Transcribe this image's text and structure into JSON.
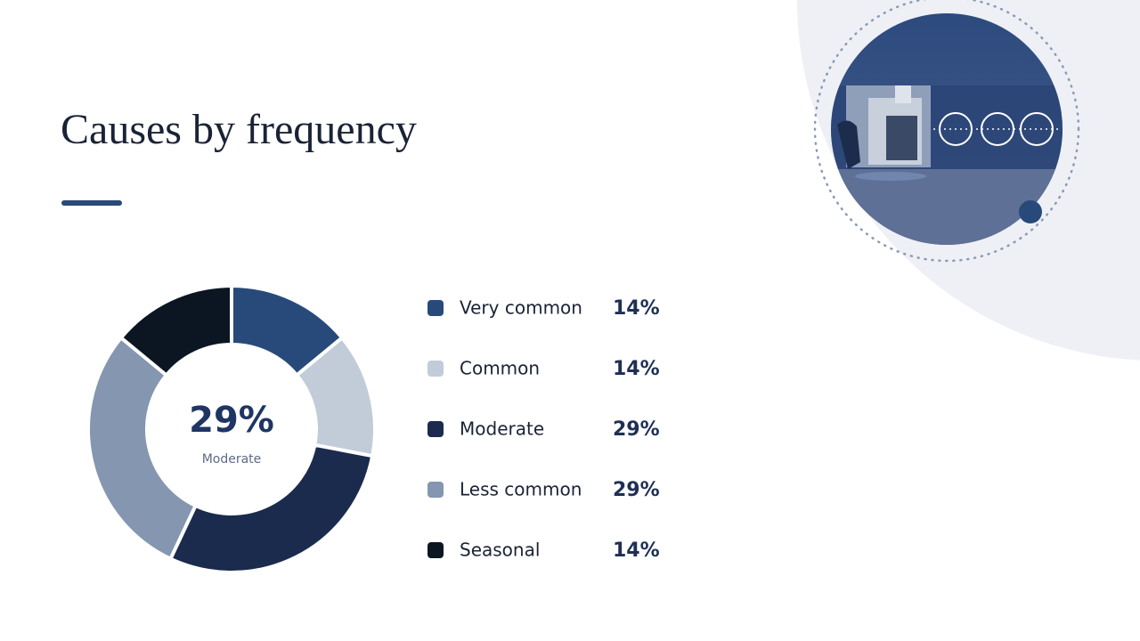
{
  "chart_data": {
    "type": "donut",
    "title": "Causes by frequency",
    "categories": [
      "Very common",
      "Common",
      "Moderate",
      "Less common",
      "Seasonal"
    ],
    "values": [
      14,
      14,
      29,
      29,
      14
    ],
    "value_labels": [
      "14%",
      "14%",
      "29%",
      "29%",
      "14%"
    ],
    "colors": [
      "#284a7a",
      "#c2ccd9",
      "#1a2b4d",
      "#8496b0",
      "#0b1622"
    ]
  }
}
